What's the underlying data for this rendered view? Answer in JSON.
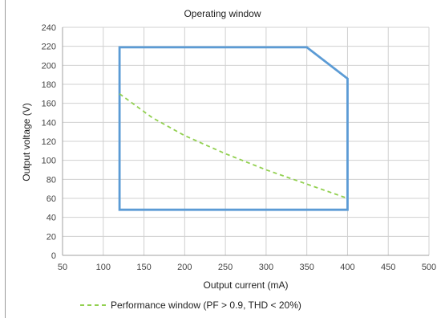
{
  "chart_data": {
    "type": "line",
    "title": "Operating window",
    "xlabel": "Output current (mA)",
    "ylabel": "Output voltage (V)",
    "xlim": [
      50,
      500
    ],
    "ylim": [
      0,
      240
    ],
    "x_ticks": [
      50,
      100,
      150,
      200,
      250,
      300,
      350,
      400,
      450,
      500
    ],
    "y_ticks": [
      0,
      20,
      40,
      60,
      80,
      100,
      120,
      140,
      160,
      180,
      200,
      220,
      240
    ],
    "grid": true,
    "legend_position": "bottom-left",
    "series": [
      {
        "style": "solid",
        "color": "#5b9bd5",
        "closed": true,
        "points": [
          [
            120,
            48
          ],
          [
            120,
            219
          ],
          [
            350,
            219
          ],
          [
            400,
            186
          ],
          [
            400,
            48
          ]
        ]
      },
      {
        "name": "Performance window (PF > 0.9, THD < 20%)",
        "style": "dashed",
        "color": "#92d050",
        "points": [
          [
            120,
            170
          ],
          [
            160,
            145
          ],
          [
            200,
            126
          ],
          [
            250,
            107
          ],
          [
            300,
            90
          ],
          [
            350,
            75
          ],
          [
            400,
            60
          ]
        ]
      }
    ]
  }
}
